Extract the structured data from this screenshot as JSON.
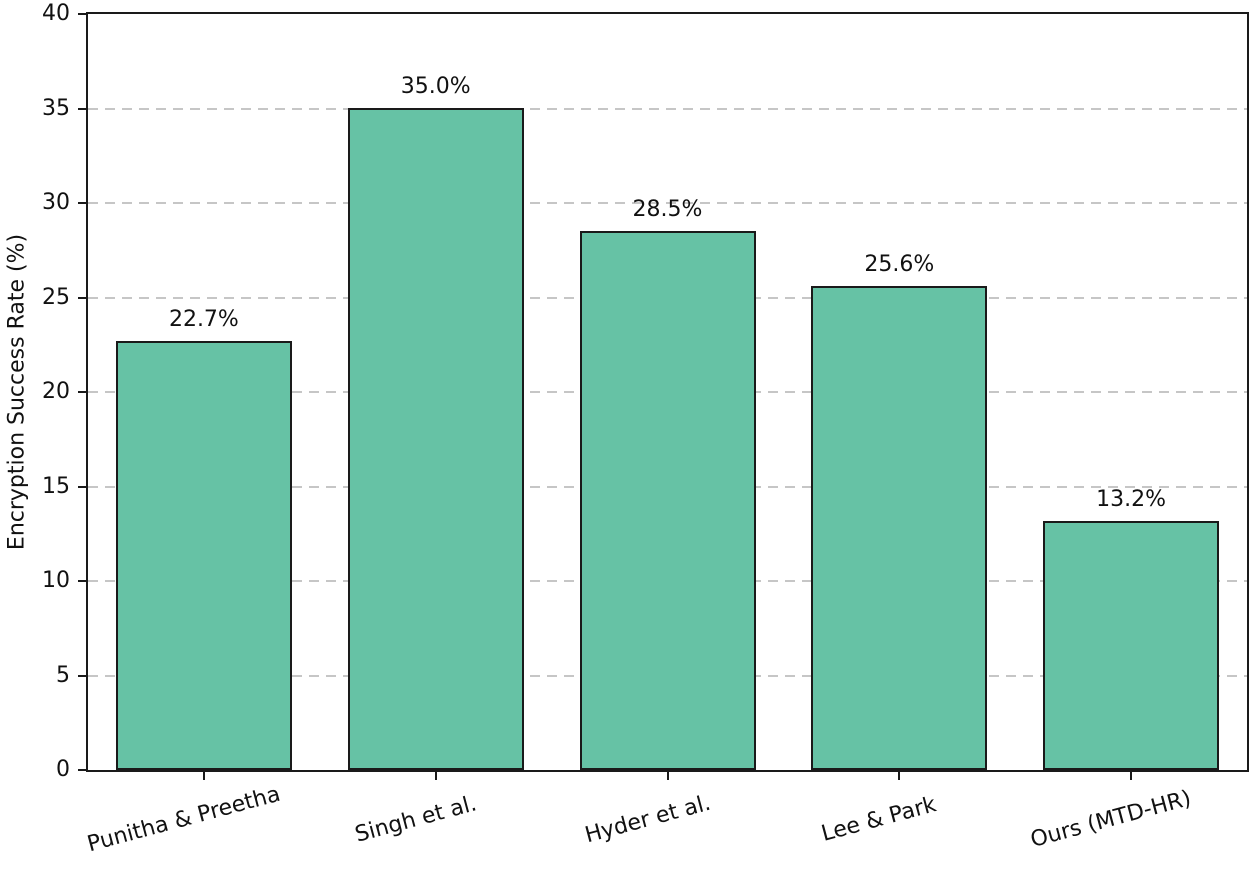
{
  "chart_data": {
    "type": "bar",
    "categories": [
      "Punitha & Preetha",
      "Singh et al.",
      "Hyder et al.",
      "Lee & Park",
      "Ours (MTD-HR)"
    ],
    "values": [
      22.7,
      35.0,
      28.5,
      25.6,
      13.2
    ],
    "value_labels": [
      "22.7%",
      "35.0%",
      "28.5%",
      "25.6%",
      "13.2%"
    ],
    "title": "",
    "xlabel": "",
    "ylabel": "Encryption Success Rate (%)",
    "ylim": [
      0,
      40
    ],
    "ytick_step": 5,
    "ytick_labels": [
      "0",
      "5",
      "10",
      "15",
      "20",
      "25",
      "30",
      "35",
      "40"
    ],
    "grid": "horizontal-dashed",
    "legend_position": "none",
    "bar_fill_color": "#66c2a5",
    "bar_edge_color": "#1a1a1a",
    "grid_color": "#c6c6c6",
    "axis_color": "#1a1a1a",
    "xtick_label_rotation_deg": 15
  }
}
